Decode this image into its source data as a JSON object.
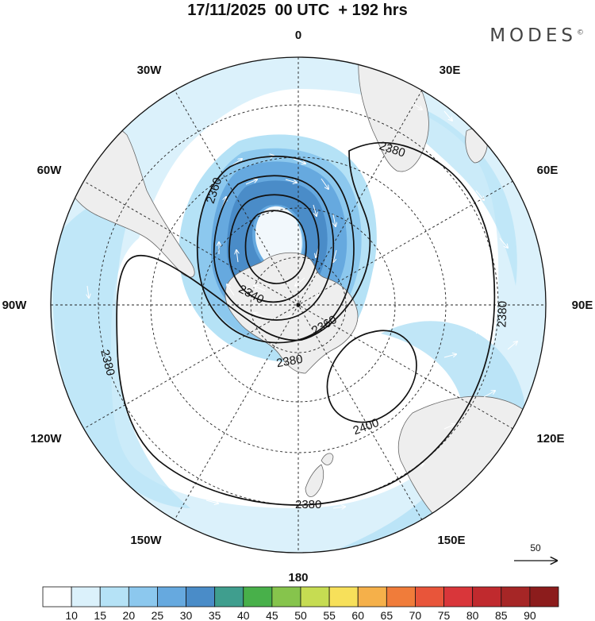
{
  "title": "17/11/2025  00 UTC  + 192 hrs",
  "logo": "MODES",
  "logo_mark": "©",
  "longitude_labels": {
    "lon_0": "0",
    "lon_30e": "30E",
    "lon_60e": "60E",
    "lon_90e": "90E",
    "lon_120e": "120E",
    "lon_150e": "150E",
    "lon_180": "180",
    "lon_150w": "150W",
    "lon_120w": "120W",
    "lon_90w": "90W",
    "lon_60w": "60W",
    "lon_30w": "30W"
  },
  "contour_labels": [
    "2380",
    "2360",
    "2340",
    "2360",
    "2380",
    "2400",
    "2380",
    "2380"
  ],
  "vector_reference": {
    "value": "50"
  },
  "colorbar": {
    "labels": [
      "10",
      "15",
      "20",
      "25",
      "30",
      "35",
      "40",
      "45",
      "50",
      "55",
      "60",
      "65",
      "70",
      "75",
      "80",
      "85",
      "90"
    ],
    "colors": [
      "#ffffff",
      "#dbf1fb",
      "#b5e2f6",
      "#8cc8ee",
      "#66a9df",
      "#4a8cc8",
      "#3f9e8e",
      "#48b04a",
      "#86c44c",
      "#c6dc52",
      "#f7e05a",
      "#f5b04a",
      "#f07c3a",
      "#e8553a",
      "#d9363a",
      "#c02a2e",
      "#a62626",
      "#8c1c1c"
    ]
  },
  "colors": {
    "land": "#eeeeee",
    "coast": "#666666",
    "wind_10_20": "#dbf1fb",
    "wind_20_25": "#b5e2f6",
    "wind_25_30": "#8cc8ee",
    "wind_30_35": "#66a9df",
    "wind_35_40": "#4a8cc8",
    "contour": "#111111"
  }
}
